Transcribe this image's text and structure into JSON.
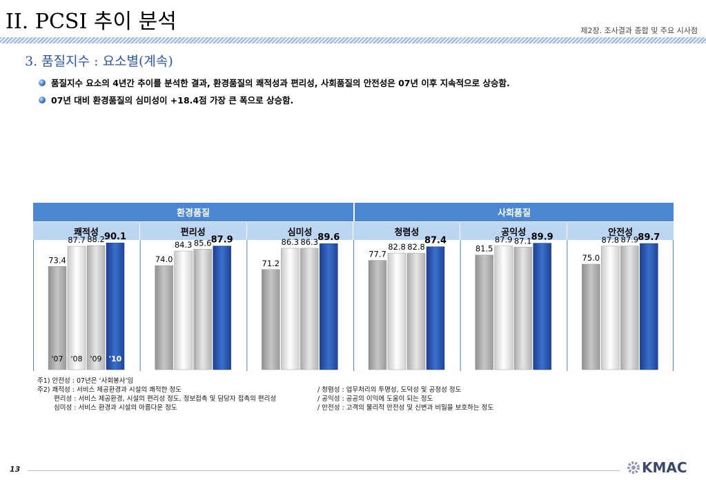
{
  "header": {
    "title": "II. PCSI 추이 분석",
    "chapter": "제2장. 조사결과 종합 및 주요 시사점"
  },
  "section_title": "3. 품질지수 : 요소별(계속)",
  "bullets": [
    "품질지수 요소의 4년간 추이를 분석한 결과, 환경품질의 쾌적성과 편리성, 사회품질의 안전성은 07년 이후 지속적으로 상승함.",
    "07년 대비 환경품질의 심미성이 +18.4점 가장 큰 폭으로 상승함."
  ],
  "table": {
    "groups": [
      "환경품질",
      "사회품질"
    ],
    "categories": [
      "쾌적성",
      "편리성",
      "심미성",
      "청렴성",
      "공익성",
      "안전성"
    ]
  },
  "colors": {
    "header_blue": "#4a86d1",
    "sub_header": "#bcd6f2",
    "title_blue": "#2d56a8",
    "bar_2010": "#2a58b0",
    "bar_gray": "#a8a8a8"
  },
  "chart_data": {
    "type": "bar",
    "categories": [
      "쾌적성",
      "편리성",
      "심미성",
      "청렴성",
      "공익성",
      "안전성"
    ],
    "year_labels": [
      "'07",
      "'08",
      "'09",
      "'10"
    ],
    "series": [
      {
        "name": "'07",
        "values": [
          73.4,
          74.0,
          71.2,
          77.7,
          81.5,
          75.0
        ]
      },
      {
        "name": "'08",
        "values": [
          87.7,
          84.3,
          86.3,
          82.8,
          87.9,
          87.8
        ]
      },
      {
        "name": "'09",
        "values": [
          88.2,
          85.6,
          86.3,
          82.8,
          87.1,
          87.9
        ]
      },
      {
        "name": "'10",
        "values": [
          90.1,
          87.9,
          89.6,
          87.4,
          89.9,
          89.7
        ]
      }
    ]
  },
  "notes": {
    "n1": "주1) 안전성 : 07년은 ‘사회봉사’임",
    "n2": "주2) 쾌적성 : 서비스 제공환경과 시설의 쾌적한 정도",
    "n3": "편리성 : 서비스 제공환경, 시설의 편리성 정도, 정보접촉 및 담당자 접촉의 편리성",
    "n4": "심미성 : 서비스 환경과 시설의 아름다운 정도",
    "n5": "/ 청렴성 : 업무처리의 투명성, 도덕성 및 공정성 정도",
    "n6": "/ 공익성 : 공공의 이익에 도움이 되는 정도",
    "n7": "/ 안전성 : 고객의 물리적 안전성 및 신변과 비밀을 보호하는 정도"
  },
  "footer": {
    "page": "13",
    "logo": "KMAC"
  }
}
